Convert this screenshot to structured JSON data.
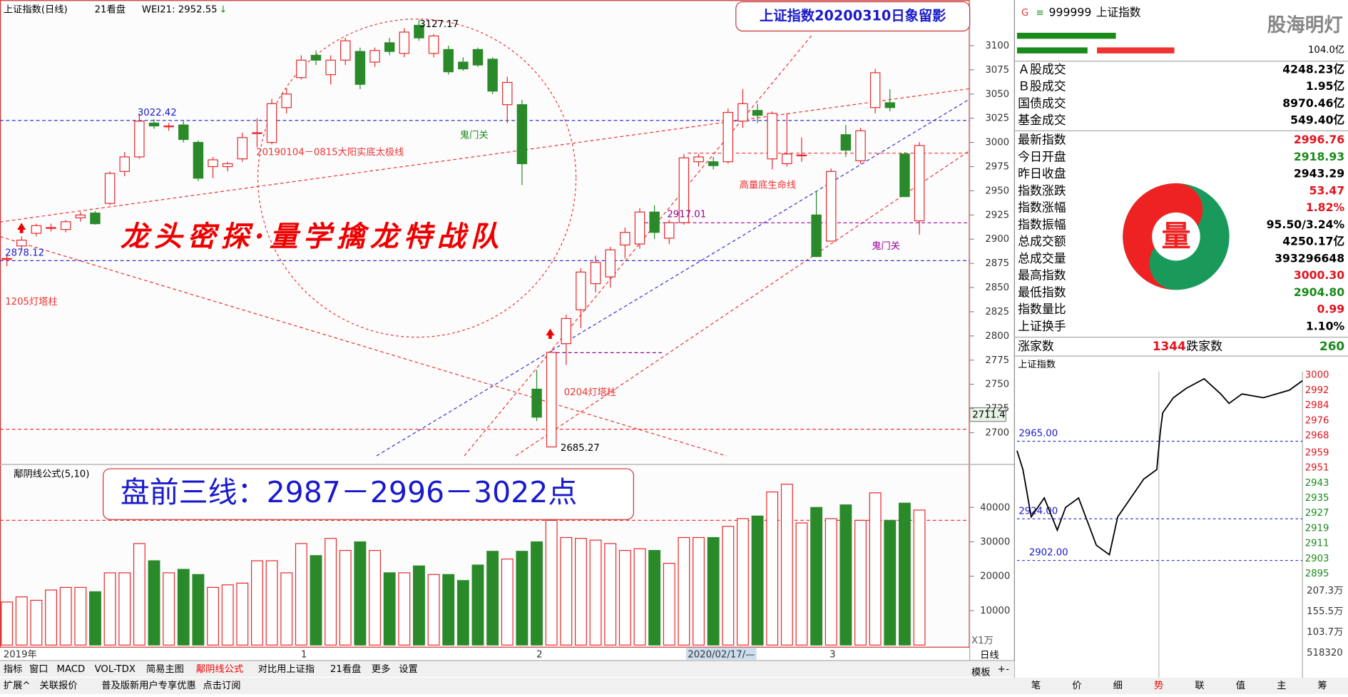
{
  "header": {
    "title": "上证指数(日线)",
    "tab": "21看盘",
    "indicator": "WEI21: 2952.55",
    "arrow": "↓"
  },
  "kline": {
    "type": "candlestick",
    "title": "上证指数20200310日象留影",
    "slogan": "龙头密探·量学擒龙特战队",
    "candles": [
      [
        2880,
        2884,
        2872,
        2880
      ],
      [
        2893,
        2903,
        2890,
        2899
      ],
      [
        2906,
        2916,
        2903,
        2914
      ],
      [
        2912,
        2916,
        2908,
        2912
      ],
      [
        2910,
        2920,
        2907,
        2918
      ],
      [
        2922,
        2928,
        2918,
        2925
      ],
      [
        2927,
        2929,
        2915,
        2916
      ],
      [
        2937,
        2970,
        2935,
        2968
      ],
      [
        2970,
        2990,
        2965,
        2985
      ],
      [
        2985,
        3030,
        2983,
        3022
      ],
      [
        3020,
        3024,
        3014,
        3017
      ],
      [
        3017,
        3020,
        3012,
        3017
      ],
      [
        3018,
        3022,
        3000,
        3003
      ],
      [
        3000,
        3002,
        2960,
        2963
      ],
      [
        2975,
        2985,
        2963,
        2982
      ],
      [
        2975,
        2980,
        2970,
        2978
      ],
      [
        2983,
        3010,
        2980,
        3005
      ],
      [
        3010,
        3025,
        2995,
        3010
      ],
      [
        3000,
        3045,
        2998,
        3040
      ],
      [
        3036,
        3056,
        3030,
        3050
      ],
      [
        3067,
        3090,
        3065,
        3085
      ],
      [
        3090,
        3095,
        3080,
        3085
      ],
      [
        3070,
        3090,
        3060,
        3085
      ],
      [
        3085,
        3108,
        3080,
        3105
      ],
      [
        3094,
        3098,
        3055,
        3060
      ],
      [
        3083,
        3098,
        3078,
        3095
      ],
      [
        3103,
        3108,
        3090,
        3094
      ],
      [
        3092,
        3118,
        3088,
        3114
      ],
      [
        3121,
        3127.17,
        3105,
        3108
      ],
      [
        3092,
        3112,
        3088,
        3110
      ],
      [
        3096,
        3100,
        3070,
        3073
      ],
      [
        3083,
        3088,
        3074,
        3076
      ],
      [
        3096,
        3098,
        3078,
        3080
      ],
      [
        3086,
        3088,
        3050,
        3053
      ],
      [
        3039,
        3068,
        3020,
        3062
      ],
      [
        3039,
        3044,
        2956,
        2978
      ],
      [
        2745,
        2765,
        2712,
        2716
      ],
      [
        2685.27,
        2785,
        2685.27,
        2783
      ],
      [
        2792,
        2822,
        2770,
        2818
      ],
      [
        2827,
        2870,
        2808,
        2866
      ],
      [
        2854,
        2883,
        2845,
        2876
      ],
      [
        2861,
        2892,
        2850,
        2889
      ],
      [
        2894,
        2912,
        2880,
        2907
      ],
      [
        2895,
        2932,
        2890,
        2928
      ],
      [
        2928,
        2935,
        2900,
        2907
      ],
      [
        2901,
        2920,
        2895,
        2917
      ],
      [
        2917,
        2988,
        2915,
        2984
      ],
      [
        2980,
        2988,
        2975,
        2985
      ],
      [
        2980,
        2985,
        2972,
        2976
      ],
      [
        2980,
        3035,
        2978,
        3031
      ],
      [
        3022,
        3055,
        3015,
        3040
      ],
      [
        3033,
        3040,
        3020,
        3028
      ],
      [
        2983,
        3032,
        2972,
        3030
      ],
      [
        2978,
        3030,
        2975,
        2988
      ],
      [
        2987,
        3005,
        2980,
        2987
      ],
      [
        2925,
        2950,
        2882,
        2882
      ],
      [
        2898,
        2973,
        2898,
        2970
      ],
      [
        3008,
        3018,
        2985,
        2992
      ],
      [
        2981,
        3015,
        2978,
        3012
      ],
      [
        3036,
        3076,
        3030,
        3072
      ],
      [
        3041,
        3055,
        3032,
        3036
      ],
      [
        2988,
        2990,
        2944,
        2944
      ],
      [
        2918.93,
        3000.3,
        2904.8,
        2996.76
      ]
    ],
    "ylim": [
      2671.6,
      3129.3
    ],
    "yticks": [
      2700,
      2725,
      2750,
      2775,
      2800,
      2825,
      2850,
      2875,
      2900,
      2925,
      2950,
      2975,
      3000,
      3025,
      3050,
      3075,
      3100
    ],
    "cursor": 2711.4,
    "annotations": [
      "3127.17",
      "3022.42",
      "2878.12",
      "2685.27",
      "2917.01",
      "20190104－0815大阳实底太极线",
      "鬼门关",
      "鬼门关",
      "高量底生命线",
      "1205灯塔柱",
      "0204灯塔柱"
    ],
    "x_labels": [
      "2019年",
      "1",
      "2",
      "2020/02/17/—",
      "3"
    ]
  },
  "volume": {
    "title": "鄅阴线公式(5,10)",
    "banner": "盘前三线：2987－2996－3022点",
    "unit": "X1万",
    "values": [
      12500,
      14000,
      13000,
      16000,
      16750,
      16750,
      15500,
      21000,
      21000,
      29500,
      24500,
      21000,
      22000,
      20500,
      16750,
      17500,
      18000,
      24500,
      24500,
      21000,
      29500,
      26000,
      31000,
      27500,
      30000,
      27500,
      21000,
      21000,
      23000,
      20500,
      20500,
      18750,
      23250,
      27250,
      25000,
      27250,
      30000,
      36250,
      31250,
      31000,
      30500,
      29500,
      27500,
      28000,
      27500,
      23750,
      31250,
      31250,
      31250,
      34500,
      36750,
      37500,
      44500,
      46750,
      35500,
      40000,
      36750,
      40750,
      36250,
      44250,
      36250,
      41250,
      39250
    ],
    "ylim": [
      0,
      51250
    ],
    "yticks": [
      10000,
      20000,
      30000,
      40000
    ]
  },
  "toolbar": {
    "tabs": [
      "指标",
      "窗口",
      "MACD",
      "VOL-TDX",
      "简易主图",
      "鄅阴线公式",
      "对比用上证指",
      "21看盘",
      "更多",
      "设置"
    ],
    "right": [
      "模板",
      "+",
      "-"
    ]
  },
  "statusbar": {
    "items": [
      "扩展^",
      "关联报价",
      "普及版新用户专享优惠",
      "点击订阅"
    ],
    "period": "日线",
    "tabs": [
      "笔",
      "价",
      "细",
      "势",
      "联",
      "值",
      "主",
      "筹"
    ]
  },
  "quote": {
    "g": "G",
    "menu": "≡",
    "code": "999999",
    "name": "上证指数",
    "watermark": "股海明灯",
    "amount": "104.0亿",
    "rows": [
      {
        "label": "Ａ股成交",
        "value": "4248.23亿",
        "color": "#000"
      },
      {
        "label": "Ｂ股成交",
        "value": "1.95亿",
        "color": "#000"
      },
      {
        "label": "国债成交",
        "value": "8970.46亿",
        "color": "#000"
      },
      {
        "label": "基金成交",
        "value": "549.40亿",
        "color": "#000"
      },
      {
        "label": "最新指数",
        "value": "2996.76",
        "color": "#e0141e"
      },
      {
        "label": "今日开盘",
        "value": "2918.93",
        "color": "#1a8a1a"
      },
      {
        "label": "昨日收盘",
        "value": "2943.29",
        "color": "#000"
      },
      {
        "label": "指数涨跌",
        "value": "53.47",
        "color": "#e0141e"
      },
      {
        "label": "指数涨幅",
        "value": "1.82%",
        "color": "#e0141e"
      },
      {
        "label": "指数振幅",
        "value": "95.50/3.24%",
        "color": "#000"
      },
      {
        "label": "总成交额",
        "value": "4250.17亿",
        "color": "#000"
      },
      {
        "label": "总成交量",
        "value": "393296648",
        "color": "#000"
      },
      {
        "label": "最高指数",
        "value": "3000.30",
        "color": "#e0141e"
      },
      {
        "label": "最低指数",
        "value": "2904.80",
        "color": "#1a8a1a"
      },
      {
        "label": "指数量比",
        "value": "0.99",
        "color": "#e0141e"
      },
      {
        "label": "上证换手",
        "value": "1.10%",
        "color": "#000"
      }
    ],
    "up_label": "涨家数",
    "up": "1344",
    "down_label": "跌家数",
    "down": "260"
  },
  "intraday": {
    "type": "line",
    "title": "上证指数",
    "xlim": [
      0,
      241
    ],
    "ylim": [
      2895,
      3000
    ],
    "minutes": [
      0,
      5,
      12,
      23,
      34,
      41,
      52,
      67,
      78,
      85,
      107,
      118,
      121,
      123,
      132,
      143,
      158,
      172,
      179,
      190,
      208,
      230,
      241
    ],
    "price": [
      2960,
      2950,
      2925,
      2935,
      2918,
      2930,
      2935,
      2910,
      2905,
      2925,
      2945,
      2950,
      2970,
      2980,
      2988,
      2993,
      2998,
      2990,
      2985,
      2990,
      2988,
      2992,
      2997
    ],
    "yticks": [
      3000,
      2992,
      2984,
      2976,
      2968,
      2959,
      2951,
      2943,
      2935,
      2927,
      2919,
      2911,
      2903,
      2895
    ],
    "levels": [
      {
        "value": 2965,
        "label": "2965.00"
      },
      {
        "value": 2924,
        "label": "2924.00"
      },
      {
        "value": 2902,
        "label": "2902.00"
      }
    ],
    "volume_ticks": [
      "207.3万",
      "155.5万",
      "103.7万",
      "518320"
    ]
  }
}
